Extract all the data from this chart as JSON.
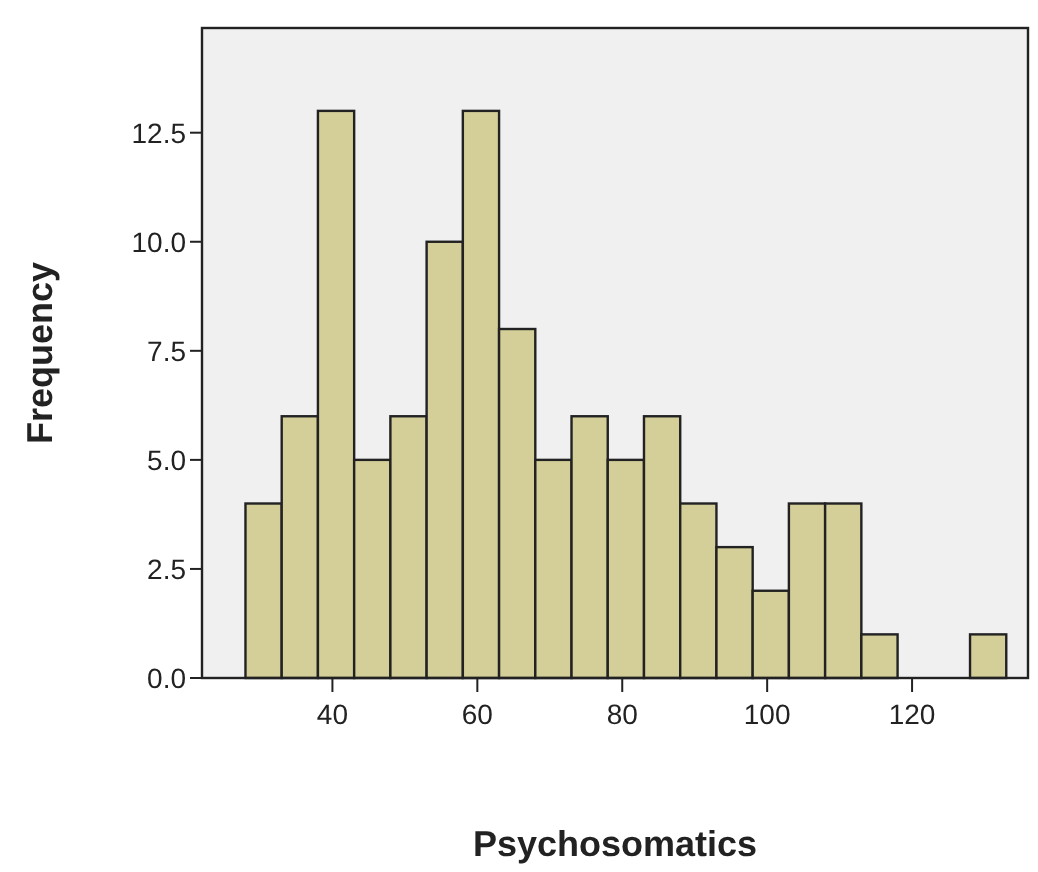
{
  "chart_data": {
    "type": "histogram",
    "xlabel": "Psychosomatics",
    "ylabel": "Frequency",
    "bins": [
      28,
      33,
      38,
      43,
      48,
      53,
      58,
      63,
      68,
      73,
      78,
      83,
      88,
      93,
      98,
      103,
      108,
      113,
      118,
      123,
      128,
      133
    ],
    "values": [
      4,
      6,
      13,
      5,
      6,
      10,
      13,
      8,
      5,
      6,
      5,
      6,
      4,
      3,
      2,
      4,
      4,
      1,
      0,
      0,
      1
    ],
    "color": "#d4cf98",
    "xlim": [
      22,
      136
    ],
    "xticks": [
      40,
      60,
      80,
      100,
      120
    ],
    "ylim": [
      0,
      14.9
    ],
    "yticks": [
      {
        "value": 0,
        "label": "0.0"
      },
      {
        "value": 2.5,
        "label": "2.5"
      },
      {
        "value": 5,
        "label": "5.0"
      },
      {
        "value": 7.5,
        "label": "7.5"
      },
      {
        "value": 10,
        "label": "10.0"
      },
      {
        "value": 12.5,
        "label": "12.5"
      }
    ],
    "grid": false
  }
}
